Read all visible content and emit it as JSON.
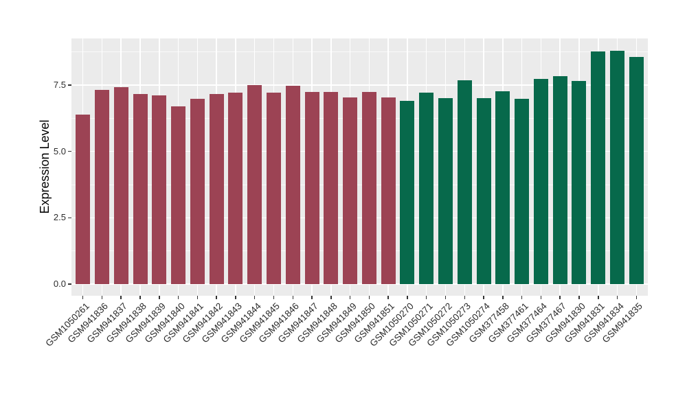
{
  "figure": {
    "background": "#FFFFFF"
  },
  "chart_data": {
    "type": "bar",
    "title": "",
    "xlabel": "",
    "ylabel": "Expression Level",
    "ylim": [
      0,
      9.26
    ],
    "ytick_values": [
      0,
      2.5,
      5,
      7.5
    ],
    "ytick_labels": [
      "0.0",
      "2.5",
      "5.0",
      "7.5"
    ],
    "minor_ytick_values": [
      1.25,
      3.75,
      6.25,
      8.75
    ],
    "grid": "white major+minor gridlines on gray panel",
    "legend_position": "none",
    "panel_bg": "#EBEBEB",
    "grid_color": "#FFFFFF",
    "axis_text_color": "#2B2B2B",
    "tick_mark_color": "#333333",
    "group_colors": [
      "#9C4354",
      "#07694B"
    ],
    "categories": [
      "GSM1050261",
      "GSM941836",
      "GSM941837",
      "GSM941838",
      "GSM941839",
      "GSM941840",
      "GSM941841",
      "GSM941842",
      "GSM941843",
      "GSM941844",
      "GSM941845",
      "GSM941846",
      "GSM941847",
      "GSM941848",
      "GSM941849",
      "GSM941850",
      "GSM941851",
      "GSM1050270",
      "GSM1050271",
      "GSM1050272",
      "GSM1050273",
      "GSM1050274",
      "GSM377458",
      "GSM377461",
      "GSM377464",
      "GSM377467",
      "GSM941830",
      "GSM941831",
      "GSM941834",
      "GSM941835"
    ],
    "values": [
      6.4,
      7.33,
      7.43,
      7.16,
      7.11,
      6.7,
      6.98,
      7.16,
      7.21,
      7.5,
      7.21,
      7.47,
      7.24,
      7.24,
      7.04,
      7.25,
      7.03,
      6.91,
      7.22,
      7.02,
      7.67,
      7.02,
      7.27,
      6.98,
      7.73,
      7.84,
      7.66,
      8.77,
      8.79,
      8.55
    ],
    "group_of_bar": [
      0,
      0,
      0,
      0,
      0,
      0,
      0,
      0,
      0,
      0,
      0,
      0,
      0,
      0,
      0,
      0,
      0,
      1,
      1,
      1,
      1,
      1,
      1,
      1,
      1,
      1,
      1,
      1,
      1,
      1
    ]
  }
}
